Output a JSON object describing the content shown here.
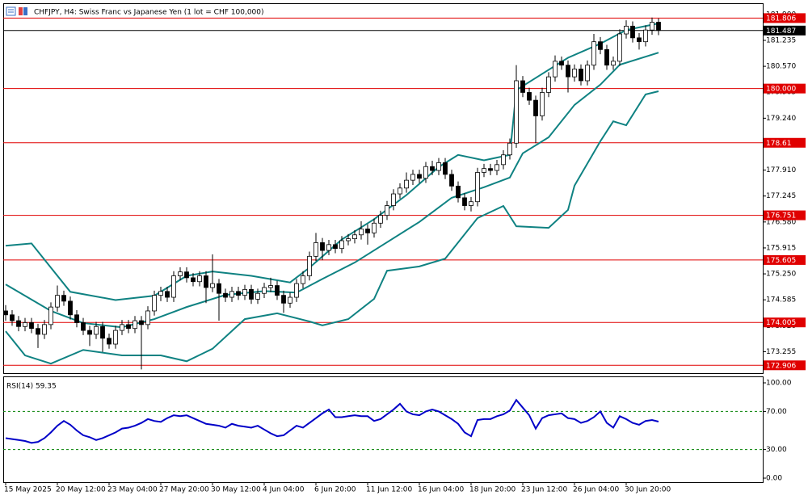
{
  "chart_data": [
    {
      "type": "candlestick",
      "title": "CHFJPY, H4:  Swiss Franc vs Japanese Yen (1 lot = CHF 100,000)",
      "categories": [
        "15 May 2025",
        null,
        null,
        null,
        null,
        null,
        null,
        null,
        "20 May 12:00",
        null,
        null,
        null,
        null,
        null,
        null,
        null,
        "23 May 04:00",
        null,
        null,
        null,
        null,
        null,
        null,
        null,
        "27 May 20:00",
        null,
        null,
        null,
        null,
        null,
        null,
        null,
        "30 May 12:00",
        null,
        null,
        null,
        null,
        null,
        null,
        null,
        "4 Jun 04:00",
        null,
        null,
        null,
        null,
        null,
        null,
        null,
        "6 Jun 20:00",
        null,
        null,
        null,
        null,
        null,
        null,
        null,
        "11 Jun 12:00",
        null,
        null,
        null,
        null,
        null,
        null,
        null,
        "16 Jun 04:00",
        null,
        null,
        null,
        null,
        null,
        null,
        null,
        "18 Jun 20:00",
        null,
        null,
        null,
        null,
        null,
        null,
        null,
        "23 Jun 12:00",
        null,
        null,
        null,
        null,
        null,
        null,
        null,
        "26 Jun 04:00",
        null,
        null,
        null,
        null,
        null,
        null,
        null,
        "30 Jun 20:00",
        null,
        null,
        null,
        null,
        null
      ],
      "open": [
        174.3,
        174.2,
        174.05,
        173.9,
        174.0,
        173.85,
        173.7,
        173.95,
        174.4,
        174.7,
        174.55,
        174.2,
        174.0,
        173.8,
        173.7,
        173.9,
        173.6,
        173.45,
        173.8,
        173.95,
        173.85,
        174.05,
        173.95,
        174.3,
        174.7,
        174.8,
        174.65,
        175.2,
        175.3,
        175.15,
        175.05,
        175.2,
        174.9,
        175.0,
        174.75,
        174.65,
        174.8,
        174.7,
        174.85,
        174.6,
        174.75,
        174.9,
        174.95,
        174.7,
        174.5,
        174.65,
        175.0,
        175.2,
        175.7,
        176.05,
        175.85,
        176.0,
        175.9,
        176.1,
        176.15,
        176.25,
        176.4,
        176.3,
        176.55,
        176.75,
        177.0,
        177.3,
        177.45,
        177.65,
        177.8,
        177.7,
        178.0,
        177.9,
        178.1,
        177.8,
        177.5,
        177.2,
        177.0,
        177.1,
        177.85,
        177.95,
        177.9,
        178.05,
        178.3,
        178.6,
        180.2,
        179.9,
        179.7,
        179.3,
        179.9,
        180.3,
        180.7,
        180.6,
        180.3,
        180.5,
        180.2,
        180.6,
        181.2,
        181.0,
        180.6,
        180.7,
        181.4,
        181.6,
        181.3,
        181.2,
        181.5,
        181.7
      ],
      "high": [
        174.45,
        174.32,
        174.17,
        174.12,
        174.12,
        173.97,
        174.07,
        174.52,
        174.95,
        174.82,
        174.67,
        174.32,
        174.12,
        173.92,
        174.02,
        174.02,
        173.72,
        173.92,
        174.07,
        174.07,
        174.17,
        174.17,
        174.42,
        174.82,
        174.92,
        174.92,
        175.32,
        175.42,
        175.42,
        175.27,
        175.32,
        175.32,
        175.75,
        175.12,
        174.87,
        174.92,
        174.92,
        174.97,
        174.97,
        174.87,
        175.02,
        175.15,
        175.07,
        174.82,
        174.77,
        175.12,
        175.32,
        175.82,
        176.3,
        176.17,
        176.12,
        176.12,
        176.22,
        176.27,
        176.37,
        176.6,
        176.52,
        176.67,
        176.87,
        177.12,
        177.42,
        177.57,
        177.85,
        177.92,
        177.92,
        178.12,
        178.15,
        178.22,
        178.22,
        177.92,
        177.62,
        177.32,
        177.22,
        177.97,
        178.07,
        178.07,
        178.17,
        178.42,
        178.72,
        180.6,
        180.32,
        180.02,
        179.82,
        180.02,
        180.42,
        180.85,
        180.82,
        180.72,
        180.62,
        180.62,
        180.72,
        181.4,
        181.32,
        181.12,
        180.82,
        181.52,
        181.75,
        181.72,
        181.42,
        181.62,
        181.82,
        181.8
      ],
      "low": [
        174.05,
        173.92,
        173.78,
        173.78,
        173.73,
        173.35,
        173.58,
        173.83,
        174.28,
        174.43,
        174.08,
        173.88,
        173.68,
        173.4,
        173.58,
        173.25,
        173.33,
        173.33,
        173.68,
        173.73,
        173.73,
        172.8,
        173.83,
        174.18,
        174.55,
        174.53,
        174.53,
        175.08,
        175.03,
        174.93,
        174.93,
        174.5,
        174.78,
        174.05,
        174.53,
        174.53,
        174.58,
        174.58,
        174.48,
        174.48,
        174.63,
        174.78,
        174.58,
        174.25,
        174.38,
        174.53,
        174.88,
        175.08,
        175.58,
        175.6,
        175.73,
        175.78,
        175.78,
        175.98,
        176.03,
        176.13,
        176.0,
        176.18,
        176.43,
        176.63,
        176.88,
        177.18,
        177.33,
        177.53,
        177.58,
        177.58,
        177.78,
        177.78,
        177.68,
        177.38,
        177.08,
        176.88,
        176.85,
        176.98,
        177.73,
        177.78,
        177.78,
        177.93,
        178.18,
        178.48,
        179.78,
        179.58,
        178.6,
        179.18,
        179.78,
        180.18,
        180.48,
        179.9,
        180.18,
        180.08,
        180.08,
        180.48,
        180.88,
        180.48,
        180.48,
        180.58,
        181.28,
        181.18,
        181.0,
        181.08,
        181.38,
        181.37
      ],
      "close": [
        174.2,
        174.05,
        173.9,
        174.0,
        173.85,
        173.7,
        173.95,
        174.4,
        174.7,
        174.55,
        174.2,
        174.0,
        173.8,
        173.7,
        173.9,
        173.6,
        173.45,
        173.8,
        173.95,
        173.85,
        174.05,
        173.95,
        174.3,
        174.7,
        174.8,
        174.65,
        175.2,
        175.3,
        175.15,
        175.05,
        175.2,
        174.9,
        175.0,
        174.75,
        174.65,
        174.8,
        174.7,
        174.85,
        174.6,
        174.75,
        174.9,
        174.95,
        174.7,
        174.5,
        174.65,
        175.0,
        175.2,
        175.7,
        176.05,
        175.85,
        176.0,
        175.9,
        176.1,
        176.15,
        176.25,
        176.4,
        176.3,
        176.55,
        176.75,
        177.0,
        177.3,
        177.45,
        177.65,
        177.8,
        177.7,
        178.0,
        177.9,
        178.1,
        177.8,
        177.5,
        177.2,
        177.0,
        177.1,
        177.85,
        177.95,
        177.9,
        178.05,
        178.3,
        178.6,
        180.2,
        179.9,
        179.7,
        179.3,
        179.9,
        180.3,
        180.7,
        180.6,
        180.3,
        180.5,
        180.2,
        180.6,
        181.2,
        181.0,
        180.6,
        180.7,
        181.4,
        181.6,
        181.3,
        181.2,
        181.5,
        181.7,
        181.49
      ],
      "up_color": "#ffffff",
      "down_color": "#000000",
      "wick_color": "#000000",
      "bands": [
        {
          "color": "#0f8282",
          "x": [
            0,
            4,
            7,
            10,
            17,
            23,
            28,
            32,
            38,
            44,
            47,
            52,
            57,
            62,
            67,
            70,
            74,
            78,
            79,
            84,
            87,
            92,
            96,
            101
          ],
          "values": [
            175.97,
            176.03,
            175.41,
            174.79,
            174.58,
            174.69,
            175.2,
            175.31,
            175.2,
            175.03,
            175.41,
            176.13,
            176.65,
            177.27,
            177.99,
            178.3,
            178.16,
            178.3,
            179.96,
            180.48,
            180.79,
            181.15,
            181.5,
            181.67
          ]
        },
        {
          "color": "#0f8282",
          "x": [
            0,
            7,
            12,
            18,
            23,
            28,
            34,
            40,
            45,
            49,
            54,
            59,
            64,
            69,
            74,
            78,
            80,
            84,
            88,
            92,
            95,
            101
          ],
          "values": [
            174.98,
            174.3,
            173.99,
            173.88,
            174.09,
            174.4,
            174.71,
            174.81,
            174.77,
            175.12,
            175.54,
            176.06,
            176.58,
            177.2,
            177.47,
            177.72,
            178.34,
            178.75,
            179.58,
            180.1,
            180.61,
            180.92
          ]
        },
        {
          "color": "#0f8282",
          "x": [
            0,
            3,
            7,
            12,
            18,
            24,
            28,
            32,
            37,
            42,
            47,
            49,
            53,
            57,
            59,
            64,
            68,
            73,
            77,
            79,
            84,
            87,
            88,
            92,
            94,
            96,
            99,
            101
          ],
          "values": [
            173.78,
            173.16,
            172.95,
            173.3,
            173.16,
            173.16,
            173.01,
            173.33,
            174.09,
            174.24,
            174.03,
            173.93,
            174.09,
            174.61,
            175.33,
            175.44,
            175.64,
            176.68,
            176.99,
            176.47,
            176.43,
            176.89,
            177.51,
            178.65,
            179.16,
            179.06,
            179.85,
            179.93
          ]
        }
      ],
      "ylim": [
        172.705,
        182.187
      ],
      "yticks": [
        {
          "value": 181.9,
          "label": "181.900"
        },
        181.235,
        {
          "value": 180.57,
          "label": "180.570"
        },
        179.905,
        {
          "value": 179.24,
          "label": "179.240"
        },
        178.575,
        {
          "value": 177.91,
          "label": "177.910"
        },
        177.245,
        {
          "value": 176.58,
          "label": "176.580"
        },
        175.915,
        {
          "value": 175.25,
          "label": "175.250"
        },
        174.585,
        {
          "value": 173.92,
          "label": "173.920"
        },
        173.255
      ],
      "levels": [
        181.806,
        {
          "value": 180,
          "label": "180.000"
        },
        178.61,
        176.751,
        175.605,
        174.005,
        172.906
      ],
      "level_color": "#e00000",
      "current_price": 181.487,
      "current_color": "#000000"
    },
    {
      "type": "line",
      "title": "RSI(14) 59.35",
      "color": "#0000c8",
      "values": [
        42,
        41,
        40,
        39,
        37,
        38,
        42,
        48,
        55,
        60,
        56,
        50,
        45,
        43,
        40,
        42,
        45,
        48,
        52,
        53,
        55,
        58,
        62,
        60,
        59,
        63,
        66,
        65,
        66,
        63,
        60,
        57,
        56,
        55,
        53,
        57,
        55,
        54,
        53,
        55,
        51,
        47,
        44,
        45,
        50,
        55,
        53,
        58,
        63,
        68,
        72,
        64,
        64,
        65,
        66,
        65,
        65,
        60,
        62,
        67,
        72,
        78,
        70,
        67,
        66,
        70,
        72,
        70,
        66,
        62,
        57,
        48,
        44,
        61,
        62,
        62,
        65,
        67,
        71,
        82,
        74,
        66,
        52,
        63,
        66,
        67,
        68,
        63,
        62,
        58,
        60,
        64,
        70,
        58,
        53,
        65,
        62,
        58,
        56,
        60,
        61,
        59.35
      ],
      "ylim": [
        0,
        100
      ],
      "yticks": [
        {
          "value": 100,
          "label": "100.00"
        },
        {
          "value": 70,
          "label": "70.00"
        },
        {
          "value": 30,
          "label": "30.00"
        },
        {
          "value": 0,
          "label": "0.00"
        }
      ],
      "levels": [
        70,
        30
      ],
      "level_color": "#008000"
    }
  ]
}
